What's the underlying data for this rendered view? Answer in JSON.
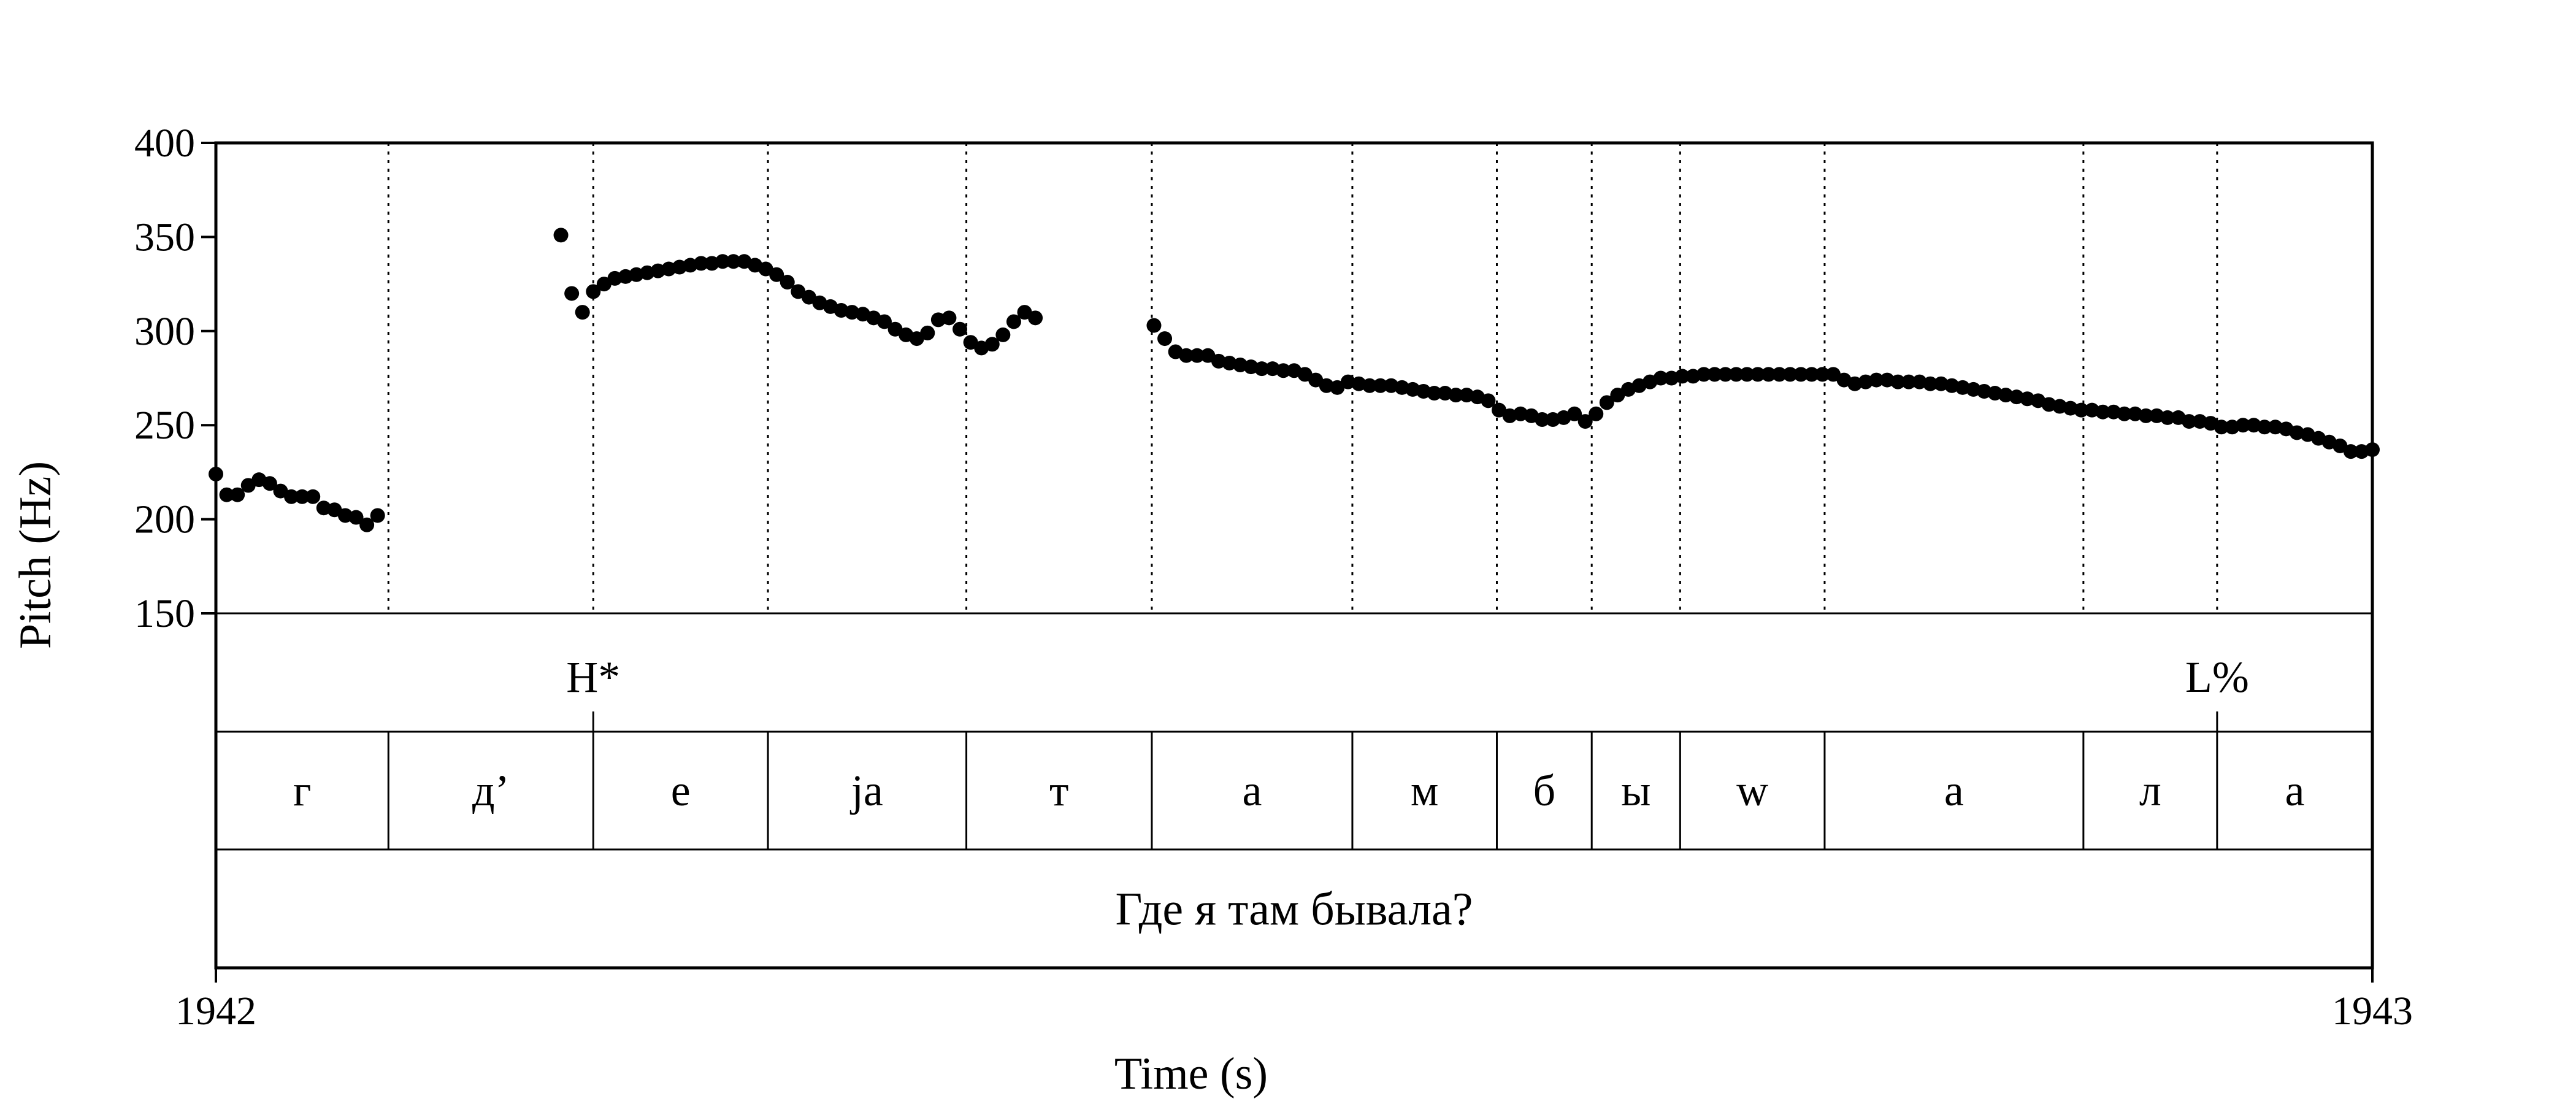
{
  "chart_data": {
    "type": "scatter",
    "xlabel": "Time (s)",
    "ylabel": "Pitch (Hz)",
    "xlim": [
      0,
      1
    ],
    "ylim": [
      150,
      400
    ],
    "x_tick_labels": [
      "1942",
      "1943"
    ],
    "yticks": [
      150,
      200,
      250,
      300,
      350,
      400
    ],
    "grid": false,
    "segment_boundaries": [
      0.08,
      0.175,
      0.256,
      0.348,
      0.434,
      0.527,
      0.594,
      0.638,
      0.679,
      0.746,
      0.866,
      0.928
    ],
    "tones": [
      {
        "label": "H*",
        "time": 0.175
      },
      {
        "label": "L%",
        "time": 0.928
      }
    ],
    "segments": [
      {
        "label": "г",
        "start": 0.0,
        "end": 0.08
      },
      {
        "label": "д’",
        "start": 0.08,
        "end": 0.175
      },
      {
        "label": "е",
        "start": 0.175,
        "end": 0.256
      },
      {
        "label": "ja",
        "start": 0.256,
        "end": 0.348
      },
      {
        "label": "т",
        "start": 0.348,
        "end": 0.434
      },
      {
        "label": "а",
        "start": 0.434,
        "end": 0.527
      },
      {
        "label": "м",
        "start": 0.527,
        "end": 0.594
      },
      {
        "label": "б",
        "start": 0.594,
        "end": 0.638
      },
      {
        "label": "ы",
        "start": 0.638,
        "end": 0.679
      },
      {
        "label": "w",
        "start": 0.679,
        "end": 0.746
      },
      {
        "label": "а",
        "start": 0.746,
        "end": 0.866
      },
      {
        "label": "л",
        "start": 0.866,
        "end": 0.928
      },
      {
        "label": "а",
        "start": 0.928,
        "end": 1.0
      }
    ],
    "sentence": "Где я там бывала?",
    "series": [
      {
        "marker_color": "#000000",
        "points": [
          [
            0.0,
            224
          ],
          [
            0.005,
            213
          ],
          [
            0.01,
            213
          ],
          [
            0.015,
            218
          ],
          [
            0.02,
            221
          ],
          [
            0.025,
            219
          ],
          [
            0.03,
            215
          ],
          [
            0.035,
            212
          ],
          [
            0.04,
            212
          ],
          [
            0.045,
            212
          ],
          [
            0.05,
            206
          ],
          [
            0.055,
            205
          ],
          [
            0.06,
            202
          ],
          [
            0.065,
            201
          ],
          [
            0.07,
            197
          ],
          [
            0.075,
            202
          ],
          [
            0.16,
            351
          ],
          [
            0.165,
            320
          ],
          [
            0.17,
            310
          ],
          [
            0.175,
            321
          ],
          [
            0.18,
            325
          ],
          [
            0.185,
            328
          ],
          [
            0.19,
            329
          ],
          [
            0.195,
            330
          ],
          [
            0.2,
            331
          ],
          [
            0.205,
            332
          ],
          [
            0.21,
            333
          ],
          [
            0.215,
            334
          ],
          [
            0.22,
            335
          ],
          [
            0.225,
            336
          ],
          [
            0.23,
            336
          ],
          [
            0.235,
            337
          ],
          [
            0.24,
            337
          ],
          [
            0.245,
            337
          ],
          [
            0.25,
            335
          ],
          [
            0.255,
            333
          ],
          [
            0.26,
            330
          ],
          [
            0.265,
            326
          ],
          [
            0.27,
            321
          ],
          [
            0.275,
            318
          ],
          [
            0.28,
            315
          ],
          [
            0.285,
            313
          ],
          [
            0.29,
            311
          ],
          [
            0.295,
            310
          ],
          [
            0.3,
            309
          ],
          [
            0.305,
            307
          ],
          [
            0.31,
            305
          ],
          [
            0.315,
            301
          ],
          [
            0.32,
            298
          ],
          [
            0.325,
            296
          ],
          [
            0.33,
            299
          ],
          [
            0.335,
            306
          ],
          [
            0.34,
            307
          ],
          [
            0.345,
            301
          ],
          [
            0.35,
            294
          ],
          [
            0.355,
            291
          ],
          [
            0.36,
            293
          ],
          [
            0.365,
            298
          ],
          [
            0.37,
            305
          ],
          [
            0.375,
            310
          ],
          [
            0.38,
            307
          ],
          [
            0.435,
            303
          ],
          [
            0.44,
            296
          ],
          [
            0.445,
            289
          ],
          [
            0.45,
            287
          ],
          [
            0.455,
            287
          ],
          [
            0.46,
            287
          ],
          [
            0.465,
            284
          ],
          [
            0.47,
            283
          ],
          [
            0.475,
            282
          ],
          [
            0.48,
            281
          ],
          [
            0.485,
            280
          ],
          [
            0.49,
            280
          ],
          [
            0.495,
            279
          ],
          [
            0.5,
            279
          ],
          [
            0.505,
            277
          ],
          [
            0.51,
            274
          ],
          [
            0.515,
            271
          ],
          [
            0.52,
            270
          ],
          [
            0.525,
            273
          ],
          [
            0.53,
            272
          ],
          [
            0.535,
            271
          ],
          [
            0.54,
            271
          ],
          [
            0.545,
            271
          ],
          [
            0.55,
            270
          ],
          [
            0.555,
            269
          ],
          [
            0.56,
            268
          ],
          [
            0.565,
            267
          ],
          [
            0.57,
            267
          ],
          [
            0.575,
            266
          ],
          [
            0.58,
            266
          ],
          [
            0.585,
            265
          ],
          [
            0.59,
            263
          ],
          [
            0.595,
            258
          ],
          [
            0.6,
            255
          ],
          [
            0.605,
            256
          ],
          [
            0.61,
            255
          ],
          [
            0.615,
            253
          ],
          [
            0.62,
            253
          ],
          [
            0.625,
            254
          ],
          [
            0.63,
            256
          ],
          [
            0.635,
            252
          ],
          [
            0.64,
            256
          ],
          [
            0.645,
            262
          ],
          [
            0.65,
            266
          ],
          [
            0.655,
            269
          ],
          [
            0.66,
            271
          ],
          [
            0.665,
            273
          ],
          [
            0.67,
            275
          ],
          [
            0.675,
            275
          ],
          [
            0.68,
            276
          ],
          [
            0.685,
            276
          ],
          [
            0.69,
            277
          ],
          [
            0.695,
            277
          ],
          [
            0.7,
            277
          ],
          [
            0.705,
            277
          ],
          [
            0.71,
            277
          ],
          [
            0.715,
            277
          ],
          [
            0.72,
            277
          ],
          [
            0.725,
            277
          ],
          [
            0.73,
            277
          ],
          [
            0.735,
            277
          ],
          [
            0.74,
            277
          ],
          [
            0.745,
            277
          ],
          [
            0.75,
            277
          ],
          [
            0.755,
            274
          ],
          [
            0.76,
            272
          ],
          [
            0.765,
            273
          ],
          [
            0.77,
            274
          ],
          [
            0.775,
            274
          ],
          [
            0.78,
            273
          ],
          [
            0.785,
            273
          ],
          [
            0.79,
            273
          ],
          [
            0.795,
            272
          ],
          [
            0.8,
            272
          ],
          [
            0.805,
            271
          ],
          [
            0.81,
            270
          ],
          [
            0.815,
            269
          ],
          [
            0.82,
            268
          ],
          [
            0.825,
            267
          ],
          [
            0.83,
            266
          ],
          [
            0.835,
            265
          ],
          [
            0.84,
            264
          ],
          [
            0.845,
            263
          ],
          [
            0.85,
            261
          ],
          [
            0.855,
            260
          ],
          [
            0.86,
            259
          ],
          [
            0.865,
            258
          ],
          [
            0.87,
            258
          ],
          [
            0.875,
            257
          ],
          [
            0.88,
            257
          ],
          [
            0.885,
            256
          ],
          [
            0.89,
            256
          ],
          [
            0.895,
            255
          ],
          [
            0.9,
            255
          ],
          [
            0.905,
            254
          ],
          [
            0.91,
            254
          ],
          [
            0.915,
            252
          ],
          [
            0.92,
            252
          ],
          [
            0.925,
            251
          ],
          [
            0.93,
            249
          ],
          [
            0.935,
            249
          ],
          [
            0.94,
            250
          ],
          [
            0.945,
            250
          ],
          [
            0.95,
            249
          ],
          [
            0.955,
            249
          ],
          [
            0.96,
            248
          ],
          [
            0.965,
            246
          ],
          [
            0.97,
            245
          ],
          [
            0.975,
            243
          ],
          [
            0.98,
            241
          ],
          [
            0.985,
            239
          ],
          [
            0.99,
            236
          ],
          [
            0.995,
            236
          ],
          [
            1.0,
            237
          ]
        ]
      }
    ]
  }
}
